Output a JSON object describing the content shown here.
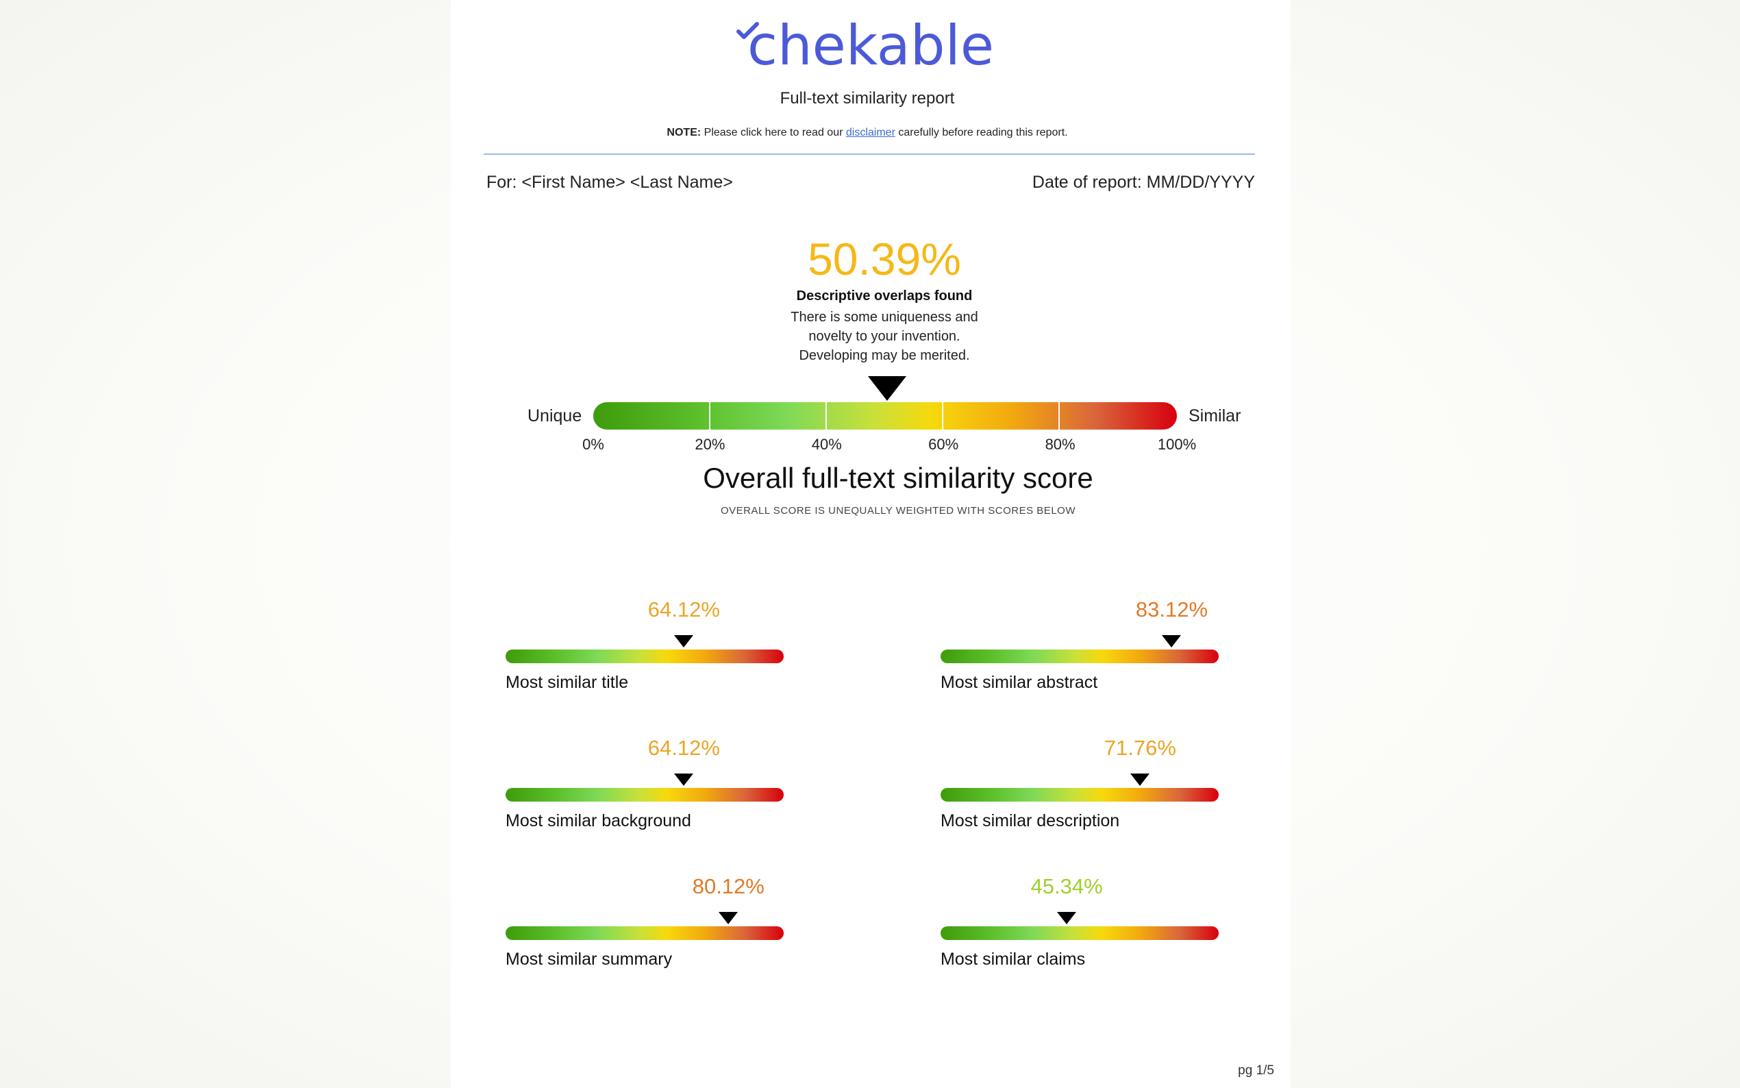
{
  "logo": {
    "text": "chekable",
    "icon": "checkmark-icon"
  },
  "report_title": "Full-text similarity report",
  "note": {
    "label": "NOTE:",
    "before": " Please click here to read our ",
    "link": "disclaimer",
    "after": " carefully before reading this report."
  },
  "header": {
    "for_text": "For: <First Name> <Last Name>",
    "date_text": "Date of report: MM/DD/YYYY"
  },
  "overall": {
    "score_text": "50.39%",
    "score_value": 50.39,
    "score_color": "#f6b817",
    "desc_title": "Descriptive overlaps found",
    "desc_lines": [
      "There is some uniqueness and",
      "novelty to your invention.",
      "Developing may be merited."
    ],
    "left_label": "Unique",
    "right_label": "Similar",
    "ticks": [
      "0%",
      "20%",
      "40%",
      "60%",
      "80%",
      "100%"
    ],
    "title": "Overall full-text similarity score",
    "subtitle": "OVERALL SCORE IS UNEQUALLY WEIGHTED WITH SCORES BELOW"
  },
  "metrics": [
    {
      "value_text": "64.12%",
      "value": 64.12,
      "color": "#e9a526",
      "label": "Most similar title"
    },
    {
      "value_text": "83.12%",
      "value": 83.12,
      "color": "#e07a28",
      "label": "Most similar abstract"
    },
    {
      "value_text": "64.12%",
      "value": 64.12,
      "color": "#e9a526",
      "label": "Most similar background"
    },
    {
      "value_text": "71.76%",
      "value": 71.76,
      "color": "#e9a526",
      "label": "Most similar description"
    },
    {
      "value_text": "80.12%",
      "value": 80.12,
      "color": "#e07a28",
      "label": "Most similar summary"
    },
    {
      "value_text": "45.34%",
      "value": 45.34,
      "color": "#9fcf2c",
      "label": "Most similar claims"
    }
  ],
  "page_number": "pg 1/5"
}
